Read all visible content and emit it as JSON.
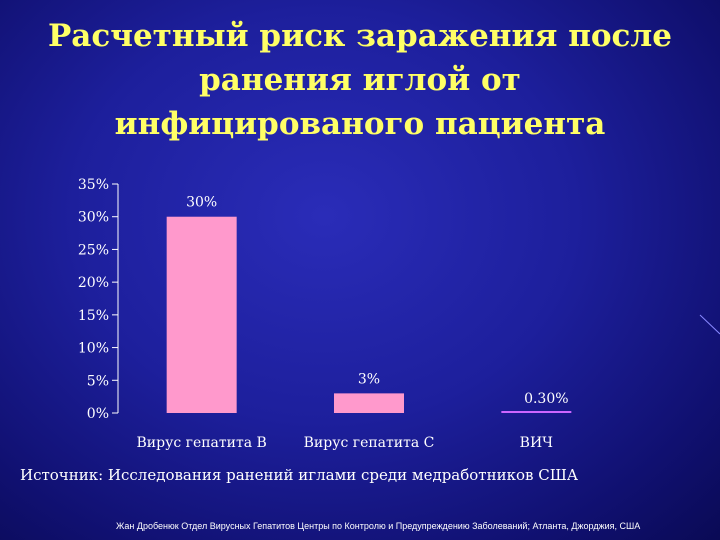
{
  "title_lines": [
    "Расчетный риск заражения после",
    "ранения иглой от",
    "инфицированого пациента"
  ],
  "chart_data": {
    "type": "bar",
    "categories": [
      "Вирус гепатита B",
      "Вирус гепатита C",
      "ВИЧ"
    ],
    "values": [
      30,
      3,
      0.3
    ],
    "data_labels": [
      "30%",
      "3%",
      "0.30%"
    ],
    "y_ticks": [
      0,
      5,
      10,
      15,
      20,
      25,
      30,
      35
    ],
    "y_tick_labels": [
      "0%",
      "5%",
      "10%",
      "15%",
      "20%",
      "25%",
      "30%",
      "35%"
    ],
    "ylim": [
      0,
      35
    ],
    "grid": false,
    "bar_colors": [
      "#ff99cc",
      "#ff99cc",
      "#cc66ff"
    ]
  },
  "source": "Источник: Исследования ранений иглами среди медработников США",
  "footer": "Жан Дробенюк Отдел Вирусных Гепатитов Центры по Контролю и Предупреждению Заболеваний; Атланта, Джорджия, США",
  "colors": {
    "title": "#ffff66",
    "text": "#ffffff",
    "axis": "#ffffff"
  }
}
